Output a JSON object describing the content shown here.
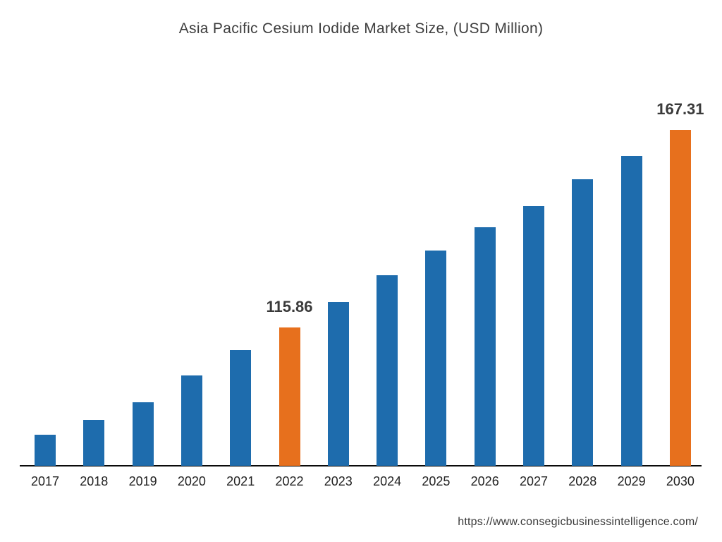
{
  "title": "Asia Pacific Cesium Iodide Market Size, (USD Million)",
  "footer": {
    "url": "https://www.consegicbusinessintelligence.com/"
  },
  "chart_data": {
    "type": "bar",
    "title": "Asia Pacific Cesium Iodide Market Size, (USD Million)",
    "categories": [
      "2017",
      "2018",
      "2019",
      "2020",
      "2021",
      "2022",
      "2023",
      "2024",
      "2025",
      "2026",
      "2027",
      "2028",
      "2029",
      "2030"
    ],
    "values": [
      88,
      92,
      96.5,
      103.5,
      110,
      115.86,
      122.5,
      129.5,
      136,
      142,
      147.5,
      154.5,
      160.5,
      167.31
    ],
    "xlabel": "",
    "ylabel": "USD Million",
    "ylim": [
      80,
      168
    ],
    "grid": false,
    "legend": false,
    "bar_colors": {
      "default": "#1E6CAD",
      "highlight": "#E7701D"
    },
    "highlighted": [
      "2022",
      "2030"
    ],
    "data_labels": [
      {
        "category": "2022",
        "text": "115.86"
      },
      {
        "category": "2030",
        "text": "167.31"
      }
    ],
    "axis_line_color": "#0a0a0a"
  }
}
